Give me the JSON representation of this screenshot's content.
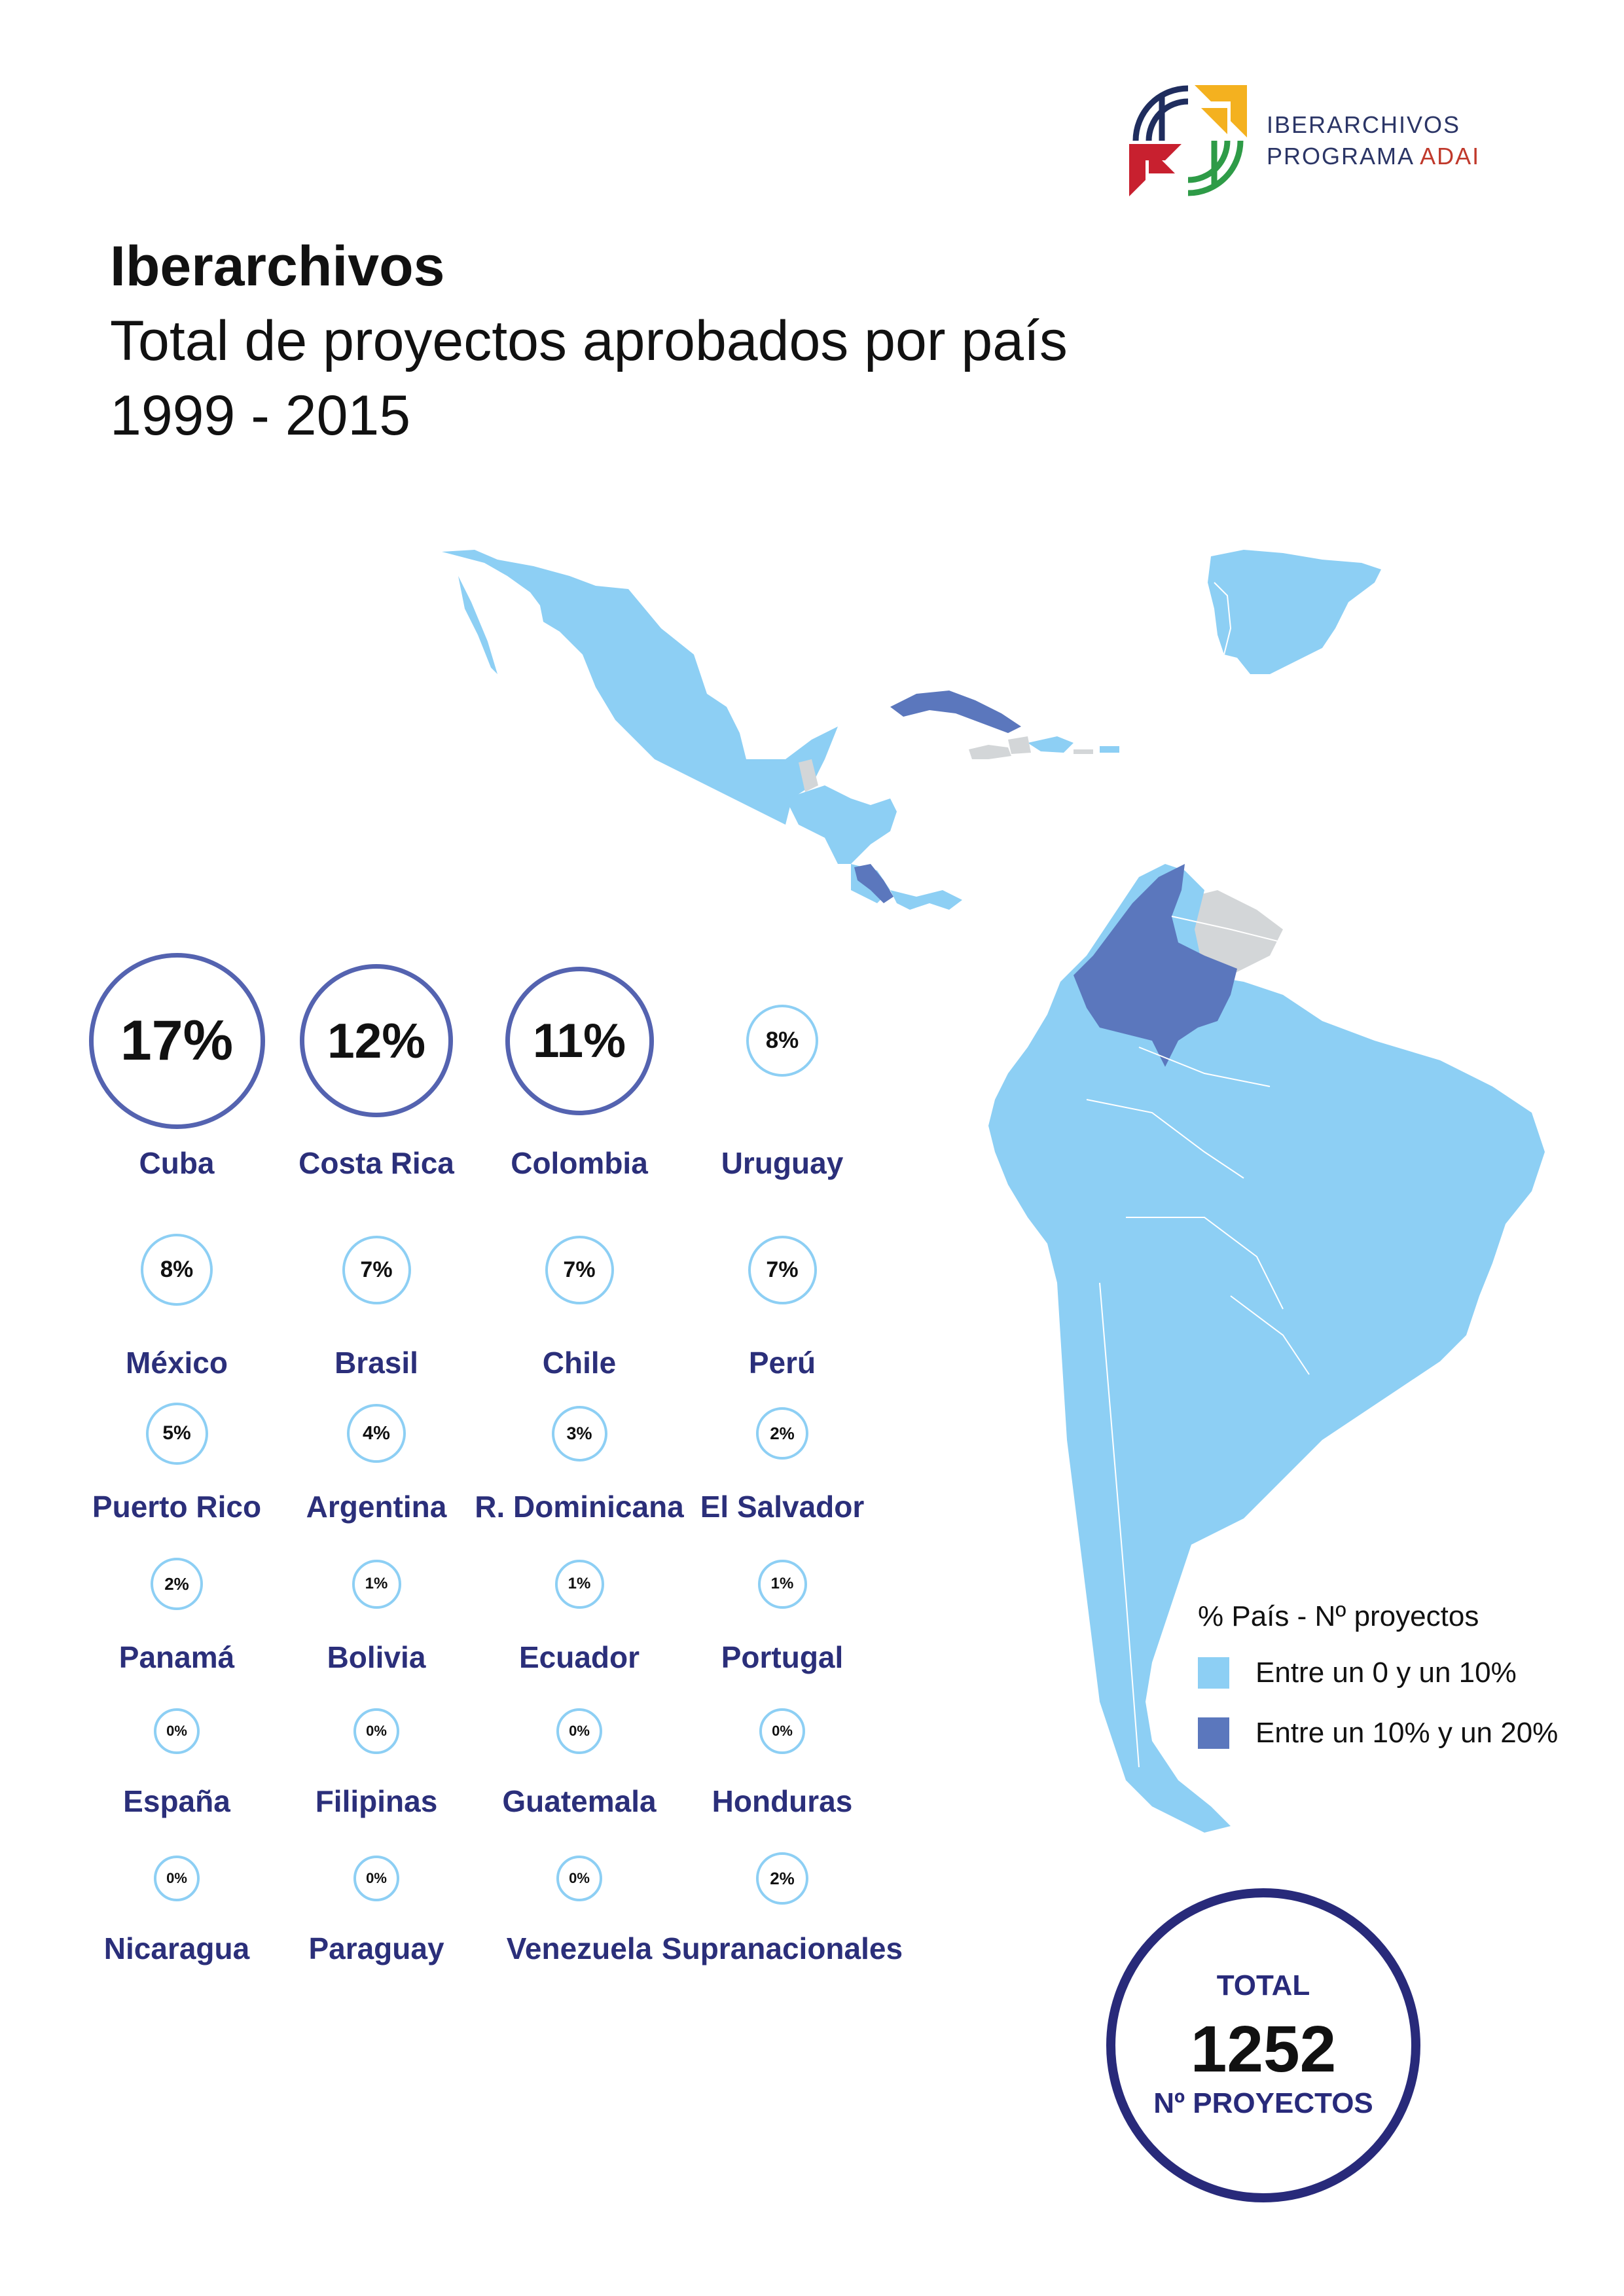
{
  "logo": {
    "line1": "IBERARCHIVOS",
    "line2_prefix": "PROGRAMA",
    "line2_accent": "ADAI"
  },
  "title": {
    "line1": "Iberarchivos",
    "line2": "Total de proyectos aprobados por país",
    "line3": "1999 - 2015"
  },
  "colors": {
    "low": "#8dcff4",
    "high": "#5b77bd",
    "nodata": "#d3d6d8",
    "ring_high": "#5463b0",
    "ring_low": "#8dcff4",
    "label": "#2b2f7a",
    "total_ring": "#282a7a"
  },
  "chart_data": {
    "type": "table",
    "unit": "%",
    "rows": [
      {
        "country": "Cuba",
        "percent": 17,
        "label": "17%",
        "category": "high"
      },
      {
        "country": "Costa Rica",
        "percent": 12,
        "label": "12%",
        "category": "high"
      },
      {
        "country": "Colombia",
        "percent": 11,
        "label": "11%",
        "category": "high"
      },
      {
        "country": "Uruguay",
        "percent": 8,
        "label": "8%",
        "category": "low"
      },
      {
        "country": "México",
        "percent": 8,
        "label": "8%",
        "category": "low"
      },
      {
        "country": "Brasil",
        "percent": 7,
        "label": "7%",
        "category": "low"
      },
      {
        "country": "Chile",
        "percent": 7,
        "label": "7%",
        "category": "low"
      },
      {
        "country": "Perú",
        "percent": 7,
        "label": "7%",
        "category": "low"
      },
      {
        "country": "Puerto Rico",
        "percent": 5,
        "label": "5%",
        "category": "low"
      },
      {
        "country": "Argentina",
        "percent": 4,
        "label": "4%",
        "category": "low"
      },
      {
        "country": "R. Dominicana",
        "percent": 3,
        "label": "3%",
        "category": "low"
      },
      {
        "country": "El Salvador",
        "percent": 2,
        "label": "2%",
        "category": "low"
      },
      {
        "country": "Panamá",
        "percent": 2,
        "label": "2%",
        "category": "low"
      },
      {
        "country": "Bolivia",
        "percent": 1,
        "label": "1%",
        "category": "low"
      },
      {
        "country": "Ecuador",
        "percent": 1,
        "label": "1%",
        "category": "low"
      },
      {
        "country": "Portugal",
        "percent": 1,
        "label": "1%",
        "category": "low"
      },
      {
        "country": "España",
        "percent": 0,
        "label": "0%",
        "category": "low"
      },
      {
        "country": "Filipinas",
        "percent": 0,
        "label": "0%",
        "category": "low"
      },
      {
        "country": "Guatemala",
        "percent": 0,
        "label": "0%",
        "category": "low"
      },
      {
        "country": "Honduras",
        "percent": 0,
        "label": "0%",
        "category": "low"
      },
      {
        "country": "Nicaragua",
        "percent": 0,
        "label": "0%",
        "category": "low"
      },
      {
        "country": "Paraguay",
        "percent": 0,
        "label": "0%",
        "category": "low"
      },
      {
        "country": "Venezuela",
        "percent": 0,
        "label": "0%",
        "category": "low"
      },
      {
        "country": "Supranacionales",
        "percent": 2,
        "label": "2%",
        "category": "low"
      }
    ],
    "legend": {
      "title": "% País - Nº proyectos",
      "items": [
        {
          "label": "Entre un 0 y un 10%",
          "color": "#8dcff4"
        },
        {
          "label": "Entre un 10% y un 20%",
          "color": "#5b77bd"
        }
      ]
    },
    "total": {
      "top_label": "TOTAL",
      "value": "1252",
      "bottom_label": "Nº PROYECTOS"
    }
  }
}
